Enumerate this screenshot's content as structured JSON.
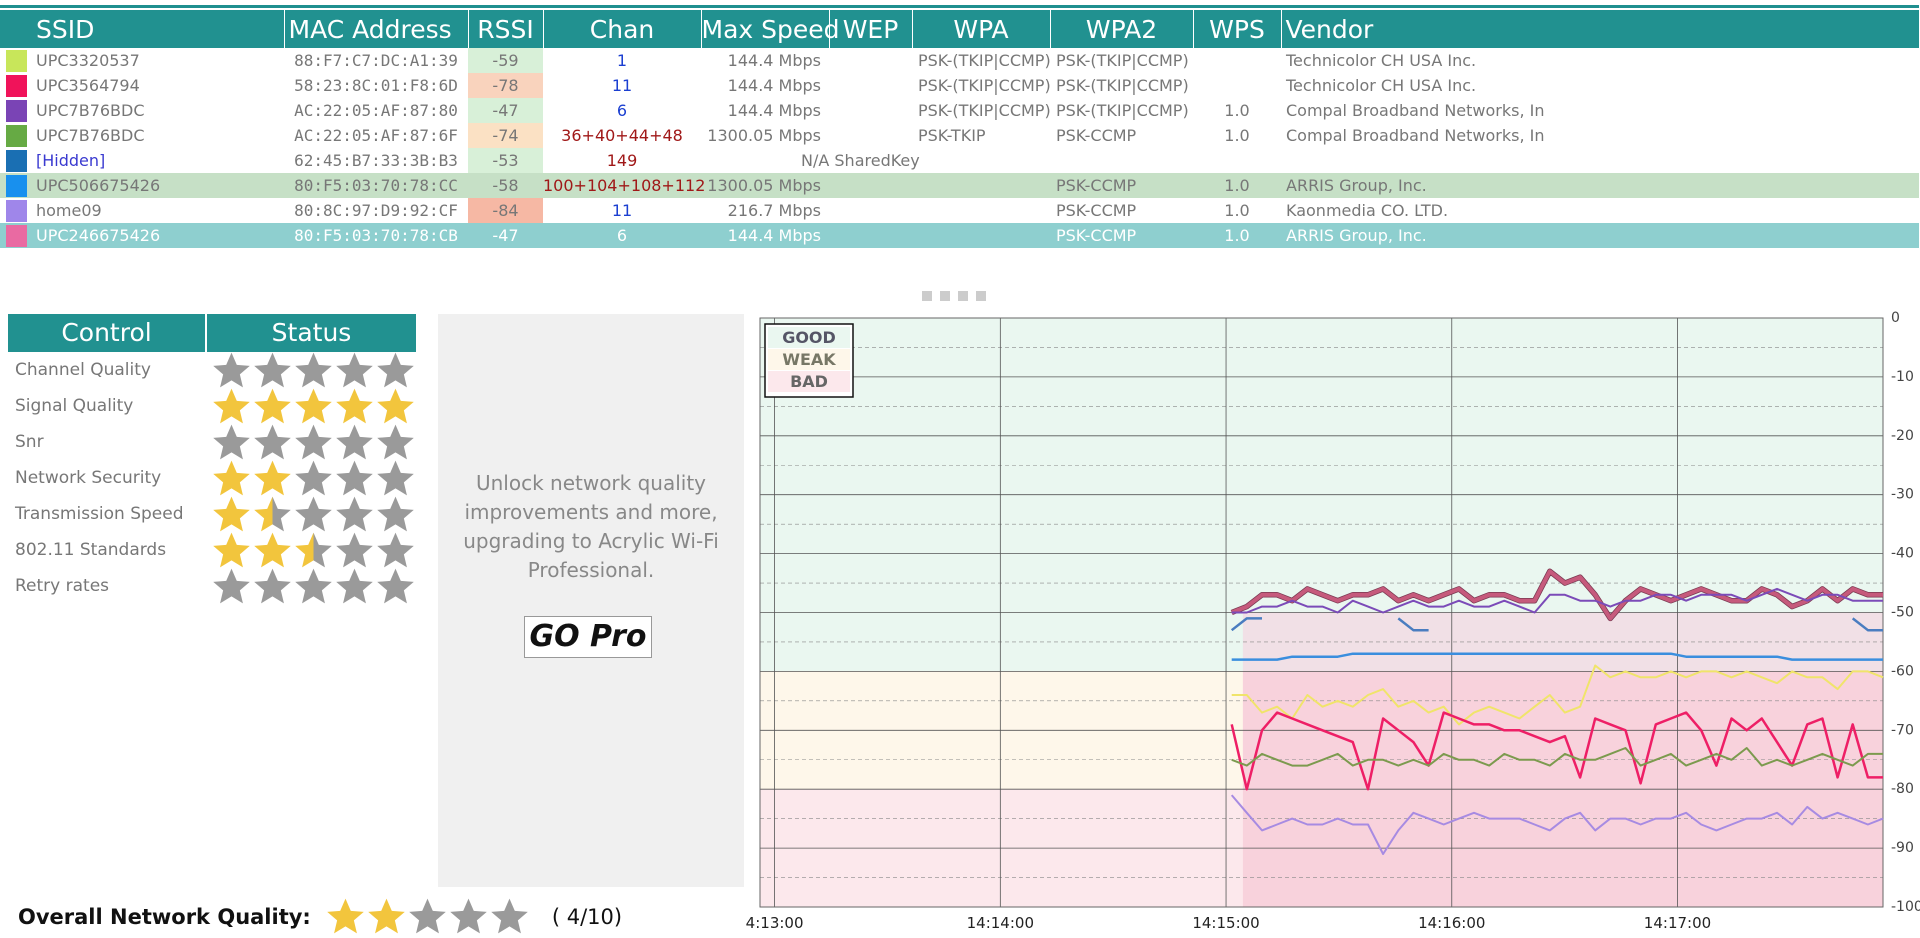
{
  "table": {
    "headers": [
      "SSID",
      "MAC Address",
      "RSSI",
      "Chan",
      "Max Speed",
      "WEP",
      "WPA",
      "WPA2",
      "WPS",
      "Vendor"
    ],
    "rows": [
      {
        "color": "#c8e65a",
        "ssid": "UPC3320537",
        "mac": "88:F7:C7:DC:A1:39",
        "rssi": "-59",
        "rssi_bg": "#d8f0d8",
        "chan": "1",
        "chan_color": "#1b3fd1",
        "speed": "144.4 Mbps",
        "wep": "",
        "wpa": "PSK-(TKIP|CCMP)",
        "wpa2": "PSK-(TKIP|CCMP)",
        "wps": "",
        "vendor": "Technicolor CH USA Inc."
      },
      {
        "color": "#f0135a",
        "ssid": "UPC3564794",
        "mac": "58:23:8C:01:F8:6D",
        "rssi": "-78",
        "rssi_bg": "#f9d3bd",
        "chan": "11",
        "chan_color": "#1b3fd1",
        "speed": "144.4 Mbps",
        "wep": "",
        "wpa": "PSK-(TKIP|CCMP)",
        "wpa2": "PSK-(TKIP|CCMP)",
        "wps": "",
        "vendor": "Technicolor CH USA Inc."
      },
      {
        "color": "#7a44b5",
        "ssid": "UPC7B76BDC",
        "mac": "AC:22:05:AF:87:80",
        "rssi": "-47",
        "rssi_bg": "#d8f0d8",
        "chan": "6",
        "chan_color": "#1b3fd1",
        "speed": "144.4 Mbps",
        "wep": "",
        "wpa": "PSK-(TKIP|CCMP)",
        "wpa2": "PSK-(TKIP|CCMP)",
        "wps": "1.0",
        "vendor": "Compal Broadband Networks, In"
      },
      {
        "color": "#66aa44",
        "ssid": "UPC7B76BDC",
        "mac": "AC:22:05:AF:87:6F",
        "rssi": "-74",
        "rssi_bg": "#fbe1c4",
        "chan": "36+40+44+48",
        "chan_color": "#a01818",
        "speed": "1300.05 Mbps",
        "wep": "",
        "wpa": "PSK-TKIP",
        "wpa2": "PSK-CCMP",
        "wps": "1.0",
        "vendor": "Compal Broadband Networks, In"
      },
      {
        "color": "#1a6fb3",
        "ssid": "[Hidden]",
        "ssid_color": "#3a3ad0",
        "mac": "62:45:B7:33:3B:B3",
        "rssi": "-53",
        "rssi_bg": "#d8f0d8",
        "chan": "149",
        "chan_color": "#a01818",
        "speed": "",
        "wep": "N/A SharedKey",
        "wpa": "",
        "wpa2": "",
        "wps": "",
        "vendor": ""
      },
      {
        "color": "#1890ee",
        "ssid": "UPC506675426",
        "mac": "80:F5:03:70:78:CC",
        "rssi": "-58",
        "rssi_bg": "",
        "chan": "100+104+108+112",
        "chan_color": "#a01818",
        "speed": "1300.05 Mbps",
        "wep": "",
        "wpa": "",
        "wpa2": "PSK-CCMP",
        "wps": "1.0",
        "vendor": "ARRIS Group, Inc.",
        "row_class": "selA"
      },
      {
        "color": "#9f86ea",
        "ssid": "home09",
        "mac": "80:8C:97:D9:92:CF",
        "rssi": "-84",
        "rssi_bg": "#f6b8a4",
        "chan": "11",
        "chan_color": "#1b3fd1",
        "speed": "216.7 Mbps",
        "wep": "",
        "wpa": "",
        "wpa2": "PSK-CCMP",
        "wps": "1.0",
        "vendor": "Kaonmedia CO. LTD."
      },
      {
        "color": "#e96aa2",
        "ssid": "UPC246675426",
        "mac": "80:F5:03:70:78:CB",
        "rssi": "-47",
        "rssi_bg": "",
        "chan": "6",
        "chan_color": "#ffffff",
        "speed": "144.4 Mbps",
        "wep": "",
        "wpa": "",
        "wpa2": "PSK-CCMP",
        "wps": "1.0",
        "vendor": "ARRIS Group, Inc.",
        "row_class": "selB"
      }
    ]
  },
  "control": {
    "header_control": "Control",
    "header_status": "Status",
    "items": [
      {
        "label": "Channel Quality",
        "stars": 0
      },
      {
        "label": "Signal Quality",
        "stars": 5
      },
      {
        "label": "Snr",
        "stars": 0
      },
      {
        "label": "Network Security",
        "stars": 2
      },
      {
        "label": "Transmission Speed",
        "stars": 1.5
      },
      {
        "label": "802.11 Standards",
        "stars": 2.5
      },
      {
        "label": "Retry rates",
        "stars": 0
      }
    ]
  },
  "promo": {
    "text": "Unlock network quality improvements and more, upgrading to Acrylic Wi-Fi Professional.",
    "button": "GO Pro"
  },
  "overall": {
    "label": "Overall Network Quality:",
    "stars": 2,
    "score": "( 4/10)"
  },
  "legend": {
    "good": "GOOD",
    "weak": "WEAK",
    "bad": "BAD"
  },
  "colors": {
    "header": "#219190",
    "star_on": "#f2c53d",
    "star_off": "#9a9a9a",
    "good_zone": "#eaf7f0",
    "weak_zone": "#fef7ea",
    "bad_zone": "#fce8ec",
    "bad_zone_recent": "#f8d2dc"
  },
  "icons": [
    "star-icon",
    "resize-grip-icon"
  ],
  "chart_data": {
    "type": "line",
    "ylabel": "",
    "ylim": [
      -100,
      0
    ],
    "yticks": [
      "0",
      "-10",
      "-20",
      "-30",
      "-40",
      "-50",
      "-60",
      "-70",
      "-80",
      "-90",
      "-100"
    ],
    "xticks": [
      "4:13:00",
      "14:14:00",
      "14:15:00",
      "14:16:00",
      "14:17:00"
    ],
    "grid": true,
    "legend_position": "top-left",
    "series": [
      {
        "color": "#c65a7c",
        "width": 4,
        "start": 0.42,
        "values": [
          -50,
          -49,
          -47,
          -47,
          -48,
          -46,
          -47,
          -48,
          -47,
          -47,
          -46,
          -48,
          -47,
          -48,
          -47,
          -46,
          -48,
          -47,
          -47,
          -48,
          -48,
          -43,
          -45,
          -44,
          -47,
          -51,
          -48,
          -46,
          -47,
          -48,
          -47,
          -46,
          -47,
          -48,
          -48,
          -46,
          -47,
          -49,
          -48,
          -46,
          -48,
          -46,
          -47,
          -47
        ]
      },
      {
        "color": "#7b4bb8",
        "width": 2,
        "start": 0.42,
        "values": [
          -50,
          -50,
          -49,
          -49,
          -48,
          -49,
          -49,
          -50,
          -48,
          -49,
          -50,
          -49,
          -48,
          -49,
          -49,
          -48,
          -49,
          -49,
          -48,
          -49,
          -50,
          -47,
          -47,
          -48,
          -48,
          -49,
          -48,
          -48,
          -47,
          -47,
          -48,
          -47,
          -47,
          -47,
          -48,
          -47,
          -46,
          -47,
          -48,
          -47,
          -47,
          -48,
          -48,
          -48
        ]
      },
      {
        "color": "#4a7dc0",
        "width": 2.5,
        "start": 0.42,
        "values": [
          -53,
          -51,
          -51,
          null,
          null,
          null,
          null,
          null,
          null,
          null,
          null,
          -51,
          -53,
          -53,
          null,
          null,
          null,
          null,
          null,
          null,
          null,
          null,
          null,
          null,
          null,
          null,
          null,
          null,
          null,
          null,
          null,
          null,
          null,
          null,
          null,
          null,
          null,
          null,
          null,
          null,
          null,
          -51,
          -53,
          -53
        ]
      },
      {
        "color": "#3a8ede",
        "width": 2.5,
        "start": 0.42,
        "values": [
          -58,
          -58,
          -58,
          -58,
          -57.5,
          -57.5,
          -57.5,
          -57.5,
          -57,
          -57,
          -57,
          -57,
          -57,
          -57,
          -57,
          -57,
          -57,
          -57,
          -57,
          -57,
          -57,
          -57,
          -57,
          -57,
          -57,
          -57,
          -57,
          -57,
          -57,
          -57,
          -57.5,
          -57.5,
          -57.5,
          -57.5,
          -57.5,
          -57.5,
          -57.5,
          -58,
          -58,
          -58,
          -58,
          -58,
          -58,
          -58
        ]
      },
      {
        "color": "#f0e46a",
        "width": 2,
        "start": 0.42,
        "values": [
          -64,
          -64,
          -67,
          -66,
          -68,
          -64,
          -66,
          -65,
          -66,
          -64,
          -63,
          -66,
          -65,
          -67,
          -66,
          -69,
          -67,
          -66,
          -67,
          -68,
          -66,
          -64,
          -67,
          -66,
          -59,
          -61,
          -60,
          -61,
          -61,
          -60,
          -61,
          -60,
          -60,
          -61,
          -60,
          -61,
          -62,
          -60,
          -61,
          -61,
          -63,
          -60,
          -60,
          -61
        ]
      },
      {
        "color": "#ee1f66",
        "width": 2.5,
        "start": 0.42,
        "values": [
          -69,
          -80,
          -70,
          -67,
          -68,
          -69,
          -70,
          -71,
          -72,
          -80,
          -68,
          -70,
          -72,
          -76,
          -67,
          -68,
          -69,
          -69,
          -70,
          -70,
          -71,
          -72,
          -71,
          -78,
          -68,
          -69,
          -70,
          -79,
          -69,
          -68,
          -67,
          -70,
          -76,
          -68,
          -70,
          -68,
          -72,
          -76,
          -69,
          -68,
          -78,
          -69,
          -78,
          -78
        ]
      },
      {
        "color": "#7c9a4e",
        "width": 2,
        "start": 0.42,
        "values": [
          -75,
          -76,
          -74,
          -75,
          -76,
          -76,
          -75,
          -74,
          -76,
          -75,
          -75,
          -76,
          -75,
          -76,
          -74,
          -75,
          -75,
          -76,
          -74,
          -75,
          -75,
          -76,
          -74,
          -75,
          -75,
          -74,
          -73,
          -76,
          -75,
          -74,
          -76,
          -75,
          -74,
          -75,
          -73,
          -76,
          -75,
          -76,
          -75,
          -74,
          -75,
          -76,
          -74,
          -74
        ]
      },
      {
        "color": "#a78be2",
        "width": 2,
        "start": 0.42,
        "values": [
          -81,
          -84,
          -87,
          -86,
          -85,
          -86,
          -86,
          -85,
          -86,
          -86,
          -91,
          -87,
          -84,
          -85,
          -86,
          -85,
          -84,
          -85,
          -85,
          -85,
          -86,
          -87,
          -85,
          -84,
          -87,
          -85,
          -85,
          -86,
          -85,
          -85,
          -84,
          -86,
          -87,
          -86,
          -85,
          -85,
          -84,
          -86,
          -83,
          -85,
          -84,
          -85,
          -86,
          -85
        ]
      }
    ]
  }
}
